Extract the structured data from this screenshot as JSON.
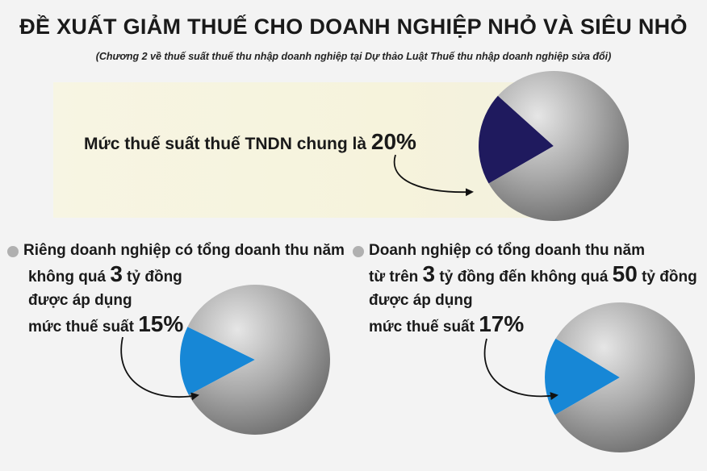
{
  "title": "ĐỀ XUẤT GIẢM THUẾ CHO DOANH NGHIỆP NHỎ VÀ SIÊU NHỎ",
  "subtitle": "(Chương 2 về thuế suất thuế thu nhập doanh nghiệp tại Dự thảo Luật Thuế thu nhập doanh nghiệp sửa đổi)",
  "main": {
    "label_text": "Mức thuế suất thuế TNDN chung là ",
    "rate": "20%"
  },
  "left_block": {
    "line1": "Riêng doanh nghiệp có tổng doanh thu năm",
    "line2_pre": "không quá ",
    "line2_num": "3",
    "line2_post": " tỷ đồng",
    "line3": "được áp dụng",
    "line4_pre": "mức thuế suất ",
    "rate": "15%"
  },
  "right_block": {
    "line1": "Doanh nghiệp có tổng doanh thu năm",
    "line2_pre": "từ trên ",
    "line2_num1": "3",
    "line2_mid": " tỷ đồng đến không quá ",
    "line2_num2": "50",
    "line2_post": " tỷ đồng",
    "line3": "được áp dụng",
    "line4_pre": "mức thuế suất ",
    "rate": "17%"
  },
  "chart_data": [
    {
      "type": "pie",
      "slices": [
        {
          "value": 20,
          "color": "#1f1a5e"
        },
        {
          "value": 80,
          "color": "#9e9e9e"
        }
      ]
    },
    {
      "type": "pie",
      "slices": [
        {
          "value": 15,
          "color": "#1787d6"
        },
        {
          "value": 85,
          "color": "#9e9e9e"
        }
      ]
    },
    {
      "type": "pie",
      "slices": [
        {
          "value": 17,
          "color": "#1787d6"
        },
        {
          "value": 83,
          "color": "#9e9e9e"
        }
      ]
    }
  ]
}
